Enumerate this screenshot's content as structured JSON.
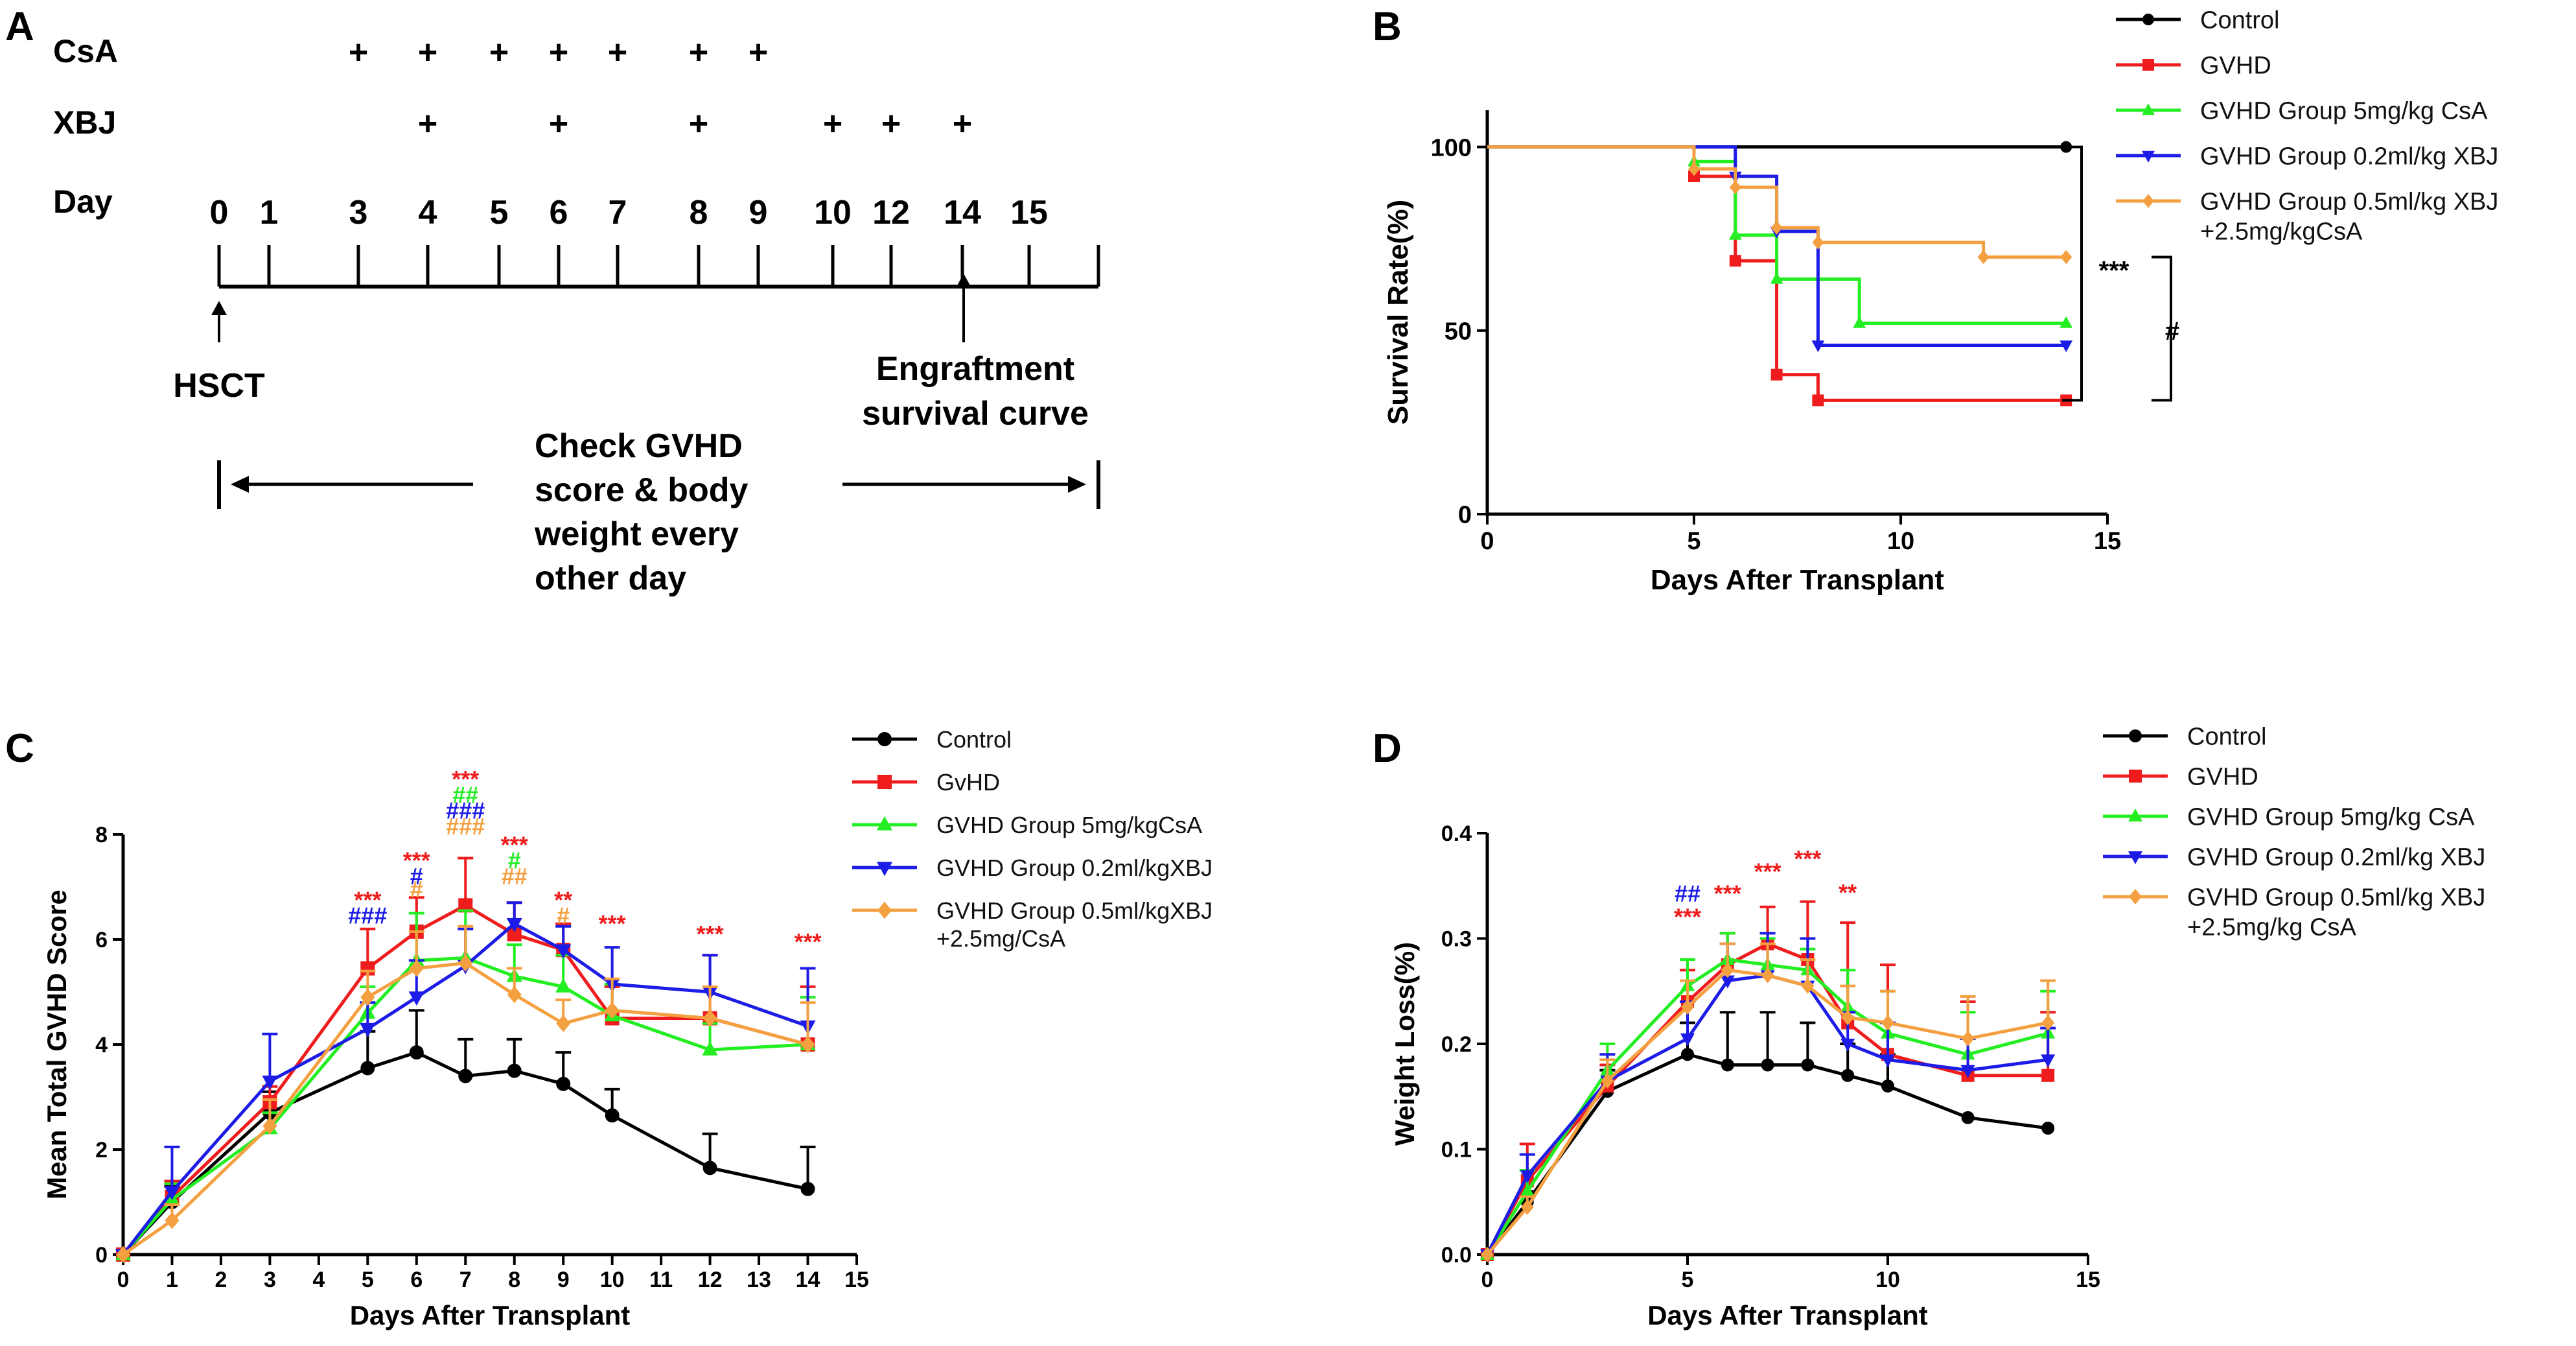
{
  "colors": {
    "control": "#000000",
    "gvhd": "#ee1c1c",
    "csa": "#22ee22",
    "xbj": "#1c1ce6",
    "combo": "#f4a040"
  },
  "panel_labels": [
    "A",
    "B",
    "C",
    "D"
  ],
  "timeline": {
    "row_labels": {
      "csa": "CsA",
      "xbj": "XBJ",
      "day": "Day"
    },
    "days": [
      "0",
      "1",
      "3",
      "4",
      "5",
      "6",
      "7",
      "8",
      "9",
      "10",
      "12",
      "14",
      "15"
    ],
    "csa_days": [
      "3",
      "4",
      "5",
      "6",
      "7",
      "8",
      "9"
    ],
    "xbj_days": [
      "4",
      "6",
      "8",
      "10",
      "12",
      "14"
    ],
    "plus": "+",
    "hsct": "HSCT",
    "engraftment": [
      "Engraftment",
      "survival curve"
    ],
    "check": [
      "Check GVHD",
      "score & body",
      "weight every",
      "other day"
    ]
  },
  "chart_data": [
    {
      "id": "B",
      "type": "line",
      "step": true,
      "xlabel": "Days After Transplant",
      "ylabel": "Survival Rate(%)",
      "xlim": [
        0,
        15
      ],
      "ylim": [
        0,
        110
      ],
      "xticks": [
        0,
        5,
        10,
        15
      ],
      "yticks": [
        0,
        50,
        100
      ],
      "legend_position": "top-right",
      "series": [
        {
          "name": "Control",
          "color": "#000000",
          "marker": "circle",
          "x": [
            0,
            14
          ],
          "y": [
            100,
            100
          ]
        },
        {
          "name": "GVHD",
          "color": "#ee1c1c",
          "marker": "square",
          "x": [
            0,
            5,
            6,
            7,
            8,
            14
          ],
          "y": [
            100,
            92,
            69,
            38,
            31,
            31
          ]
        },
        {
          "name": "GVHD Group 5mg/kg CsA",
          "color": "#22ee22",
          "marker": "triangle",
          "x": [
            0,
            5,
            6,
            7,
            9,
            14
          ],
          "y": [
            100,
            96,
            76,
            64,
            52,
            52
          ]
        },
        {
          "name": "GVHD Group 0.2ml/kg XBJ",
          "color": "#1c1ce6",
          "marker": "triangle-down",
          "x": [
            0,
            6,
            7,
            8,
            14
          ],
          "y": [
            100,
            92,
            77,
            46,
            46
          ]
        },
        {
          "name": "GVHD Group 0.5ml/kg XBJ\n+2.5mg/kgCsA",
          "color": "#f4a040",
          "marker": "diamond",
          "x": [
            0,
            5,
            6,
            7,
            8,
            12,
            14
          ],
          "y": [
            100,
            94,
            89,
            78,
            74,
            70,
            70
          ]
        }
      ],
      "annotations": [
        {
          "text": "***",
          "x": 15,
          "y": 64,
          "color": "#000000"
        },
        {
          "text": "#",
          "x": 16.5,
          "y": 50,
          "color": "#000000"
        }
      ]
    },
    {
      "id": "C",
      "type": "line",
      "xlabel": "Days After Transplant",
      "ylabel": "Mean Total GVHD Score",
      "xlim": [
        0,
        15
      ],
      "ylim": [
        0,
        8
      ],
      "xticks": [
        0,
        1,
        2,
        3,
        4,
        5,
        6,
        7,
        8,
        9,
        10,
        11,
        12,
        13,
        14,
        15
      ],
      "yticks": [
        0,
        2,
        4,
        6,
        8
      ],
      "legend_position": "top-right",
      "x": [
        0,
        1,
        3,
        5,
        6,
        7,
        8,
        9,
        10,
        12,
        14
      ],
      "series": [
        {
          "name": "Control",
          "color": "#000000",
          "marker": "circle",
          "values": [
            0,
            1,
            2.7,
            3.55,
            3.85,
            3.4,
            3.5,
            3.25,
            2.65,
            1.65,
            1.25
          ],
          "errors": [
            0,
            0.3,
            0.4,
            0.7,
            0.8,
            0.7,
            0.6,
            0.6,
            0.5,
            0.65,
            0.8
          ]
        },
        {
          "name": "GvHD",
          "color": "#ee1c1c",
          "marker": "square",
          "values": [
            0,
            1.1,
            2.9,
            5.45,
            6.15,
            6.65,
            6.1,
            5.8,
            4.5,
            4.5,
            4
          ],
          "errors": [
            0,
            0.3,
            0.3,
            0.75,
            0.65,
            0.9,
            0.6,
            0.5,
            0.6,
            1.2,
            1.1
          ]
        },
        {
          "name": "GVHD Group 5mg/kgCsA",
          "color": "#22ee22",
          "marker": "triangle",
          "values": [
            0,
            1.05,
            2.4,
            4.6,
            5.6,
            5.65,
            5.3,
            5.1,
            4.55,
            3.9,
            4
          ],
          "errors": [
            0,
            0.3,
            0.3,
            0.5,
            0.9,
            0.9,
            0.6,
            0.6,
            0.6,
            0.5,
            0.9
          ]
        },
        {
          "name": "GVHD Group 0.2ml/kgXBJ",
          "color": "#1c1ce6",
          "marker": "triangle-down",
          "values": [
            0,
            1.2,
            3.3,
            4.3,
            4.9,
            5.5,
            6.3,
            5.8,
            5.15,
            5,
            4.35
          ],
          "errors": [
            0,
            0.85,
            0.9,
            0.5,
            0.7,
            0.7,
            0.4,
            0.45,
            0.7,
            0.7,
            1.1
          ]
        },
        {
          "name": "GVHD Group 0.5ml/kgXBJ\n+2.5mg/CsA",
          "color": "#f4a040",
          "marker": "diamond",
          "values": [
            0,
            0.65,
            2.45,
            4.9,
            5.45,
            5.55,
            4.95,
            4.4,
            4.65,
            4.5,
            4
          ],
          "errors": [
            0,
            0.3,
            0.5,
            0.5,
            0.7,
            0.7,
            0.5,
            0.45,
            0.6,
            0.6,
            0.8
          ]
        }
      ],
      "annotations": [
        {
          "x": 5,
          "y": 6.6,
          "text": "***",
          "color": "#ee1c1c"
        },
        {
          "x": 5,
          "y": 6.3,
          "text": "###",
          "color": "#1c1ce6"
        },
        {
          "x": 6,
          "y": 7.35,
          "text": "***",
          "color": "#ee1c1c"
        },
        {
          "x": 6,
          "y": 7.05,
          "text": "#",
          "color": "#1c1ce6"
        },
        {
          "x": 6,
          "y": 6.8,
          "text": "#",
          "color": "#f4a040"
        },
        {
          "x": 7,
          "y": 8.9,
          "text": "***",
          "color": "#ee1c1c"
        },
        {
          "x": 7,
          "y": 8.6,
          "text": "##",
          "color": "#22ee22"
        },
        {
          "x": 7,
          "y": 8.3,
          "text": "###",
          "color": "#1c1ce6"
        },
        {
          "x": 7,
          "y": 8.0,
          "text": "###",
          "color": "#f4a040"
        },
        {
          "x": 8,
          "y": 7.65,
          "text": "***",
          "color": "#ee1c1c"
        },
        {
          "x": 8,
          "y": 7.35,
          "text": "#",
          "color": "#22ee22"
        },
        {
          "x": 8,
          "y": 7.05,
          "text": "##",
          "color": "#f4a040"
        },
        {
          "x": 9,
          "y": 6.6,
          "text": "**",
          "color": "#ee1c1c"
        },
        {
          "x": 9,
          "y": 6.3,
          "text": "#",
          "color": "#f4a040"
        },
        {
          "x": 10,
          "y": 6.15,
          "text": "***",
          "color": "#ee1c1c"
        },
        {
          "x": 12,
          "y": 5.95,
          "text": "***",
          "color": "#ee1c1c"
        },
        {
          "x": 14,
          "y": 5.8,
          "text": "***",
          "color": "#ee1c1c"
        }
      ]
    },
    {
      "id": "D",
      "type": "line",
      "xlabel": "Days After Transplant",
      "ylabel": "Weight Loss(%)",
      "xlim": [
        0,
        15
      ],
      "ylim": [
        0,
        0.4
      ],
      "xticks": [
        0,
        5,
        10,
        15
      ],
      "yticks": [
        0.0,
        0.1,
        0.2,
        0.3,
        0.4
      ],
      "legend_position": "top-right",
      "x": [
        0,
        1,
        3,
        5,
        6,
        7,
        8,
        9,
        10,
        12,
        14
      ],
      "series": [
        {
          "name": "Control",
          "color": "#000000",
          "marker": "circle",
          "values": [
            0,
            0.05,
            0.155,
            0.19,
            0.18,
            0.18,
            0.18,
            0.17,
            0.16,
            0.13,
            0.12
          ],
          "errors": [
            0,
            0.01,
            0.02,
            0.03,
            0.05,
            0.05,
            0.04,
            0.03,
            0.03,
            0,
            0
          ]
        },
        {
          "name": "GVHD",
          "color": "#ee1c1c",
          "marker": "square",
          "values": [
            0,
            0.07,
            0.16,
            0.24,
            0.275,
            0.295,
            0.28,
            0.22,
            0.19,
            0.17,
            0.17
          ],
          "errors": [
            0,
            0.035,
            0.02,
            0.03,
            0.03,
            0.035,
            0.055,
            0.095,
            0.085,
            0.07,
            0.06
          ]
        },
        {
          "name": "GVHD Group 5mg/kg CsA",
          "color": "#22ee22",
          "marker": "triangle",
          "values": [
            0,
            0.06,
            0.175,
            0.255,
            0.28,
            0.275,
            0.27,
            0.235,
            0.21,
            0.19,
            0.21
          ],
          "errors": [
            0,
            0.02,
            0.025,
            0.025,
            0.025,
            0.025,
            0.02,
            0.035,
            0.04,
            0.04,
            0.04
          ]
        },
        {
          "name": "GVHD Group 0.2ml/kg XBJ",
          "color": "#1c1ce6",
          "marker": "triangle-down",
          "values": [
            0,
            0.075,
            0.165,
            0.205,
            0.26,
            0.265,
            0.255,
            0.2,
            0.185,
            0.175,
            0.185
          ],
          "errors": [
            0,
            0.02,
            0.025,
            0.035,
            0.035,
            0.04,
            0.045,
            0.03,
            0.035,
            0.03,
            0.03
          ]
        },
        {
          "name": "GVHD Group 0.5ml/kg XBJ\n+2.5mg/kg CsA",
          "color": "#f4a040",
          "marker": "diamond",
          "values": [
            0,
            0.045,
            0.165,
            0.235,
            0.27,
            0.265,
            0.255,
            0.225,
            0.22,
            0.205,
            0.22
          ],
          "errors": [
            0,
            0.01,
            0.02,
            0.025,
            0.025,
            0.03,
            0.025,
            0.03,
            0.03,
            0.04,
            0.04
          ]
        }
      ],
      "annotations": [
        {
          "x": 5,
          "y": 0.335,
          "text": "##",
          "color": "#1c1ce6"
        },
        {
          "x": 5,
          "y": 0.313,
          "text": "***",
          "color": "#ee1c1c"
        },
        {
          "x": 6,
          "y": 0.335,
          "text": "***",
          "color": "#ee1c1c"
        },
        {
          "x": 7,
          "y": 0.356,
          "text": "***",
          "color": "#ee1c1c"
        },
        {
          "x": 8,
          "y": 0.368,
          "text": "***",
          "color": "#ee1c1c"
        },
        {
          "x": 9,
          "y": 0.336,
          "text": "**",
          "color": "#ee1c1c"
        }
      ]
    }
  ]
}
